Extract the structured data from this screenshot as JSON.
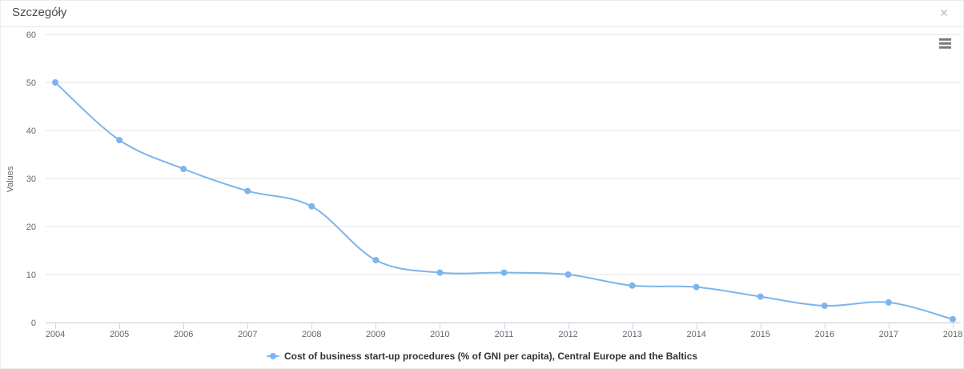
{
  "modal": {
    "title": "Szczegóły",
    "close_icon": "✕"
  },
  "chart_data": {
    "type": "line",
    "title": "",
    "x": [
      2004,
      2005,
      2006,
      2007,
      2008,
      2009,
      2010,
      2011,
      2012,
      2013,
      2014,
      2015,
      2016,
      2017,
      2018
    ],
    "series": [
      {
        "name": "Cost of business start-up procedures (% of GNI per capita), Central Europe and the Baltics",
        "values": [
          50,
          38,
          32,
          27.4,
          24.2,
          13,
          10.4,
          10.4,
          10,
          7.7,
          7.4,
          5.4,
          3.5,
          4.2,
          0.7
        ],
        "color": "#7cb5ec"
      }
    ],
    "xlabel": "",
    "ylabel": "Values",
    "ylim": [
      0,
      60
    ],
    "yticks": [
      0,
      10,
      20,
      30,
      40,
      50,
      60
    ],
    "grid": true,
    "legend_position": "bottom",
    "colors": {
      "grid": "#e6e6e6",
      "axis_line": "#ccd6eb",
      "tick": "#ccd6eb",
      "axis_label": "#666666",
      "axis_title": "#666666",
      "legend_text": "#333333"
    }
  },
  "export_menu": {
    "icon_name": "hamburger-menu-icon"
  }
}
